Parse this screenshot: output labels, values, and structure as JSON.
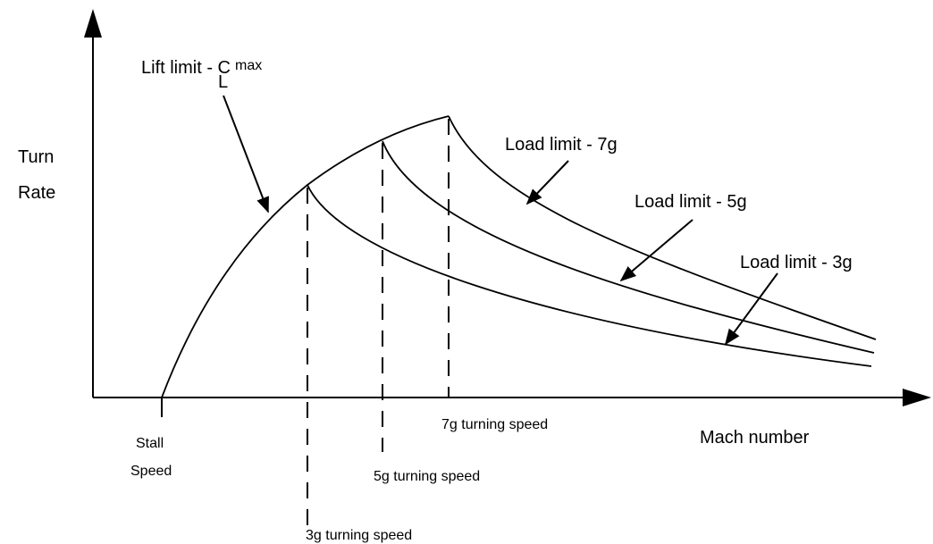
{
  "axes": {
    "y_label_line1": "Turn",
    "y_label_line2": "Rate",
    "x_label": "Mach number"
  },
  "labels": {
    "lift_limit": "Lift limit - C",
    "lift_sub": "L",
    "lift_sup": "max",
    "load_7g": "Load limit - 7g",
    "load_5g": "Load limit - 5g",
    "load_3g": "Load limit - 3g",
    "stall_line1": "Stall",
    "stall_line2": "Speed",
    "turn_7g": "7g turning speed",
    "turn_5g": "5g turning speed",
    "turn_3g": "3g turning speed"
  }
}
